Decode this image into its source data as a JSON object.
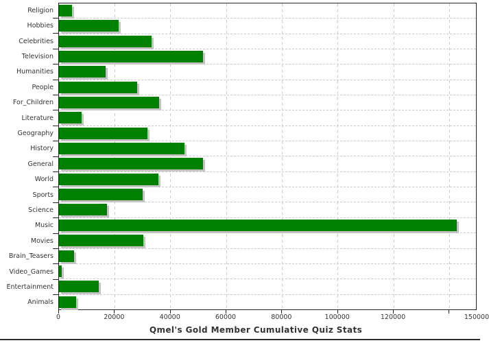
{
  "chart_data": {
    "type": "bar",
    "orientation": "horizontal",
    "title": "Qmel's Gold Member Cumulative Quiz Stats",
    "categories": [
      "Religion",
      "Hobbies",
      "Celebrities",
      "Television",
      "Humanities",
      "People",
      "For_Children",
      "Literature",
      "Geography",
      "History",
      "General",
      "World",
      "Sports",
      "Science",
      "Music",
      "Movies",
      "Brain_Teasers",
      "Video_Games",
      "Entertainment",
      "Animals"
    ],
    "values": [
      4700,
      21400,
      33200,
      51700,
      16700,
      28200,
      36100,
      8200,
      31900,
      45200,
      51700,
      35700,
      30000,
      17200,
      143200,
      30400,
      5500,
      1100,
      14400,
      6100
    ],
    "xlabel": "",
    "ylabel": "",
    "xlim": [
      0,
      150000
    ],
    "x_ticks": [
      {
        "value": 0,
        "label": "0"
      },
      {
        "value": 20000,
        "label": "20000"
      },
      {
        "value": 40000,
        "label": "40000"
      },
      {
        "value": 60000,
        "label": "60000"
      },
      {
        "value": 80000,
        "label": "80000"
      },
      {
        "value": 100000,
        "label": "100000"
      },
      {
        "value": 120000,
        "label": "120000"
      },
      {
        "value": 140000,
        "label": ""
      },
      {
        "value": 150000,
        "label": "150000"
      }
    ],
    "grid": "dashed",
    "legend": "none",
    "colors": {
      "bar": "#008000",
      "bar_shadow": "#c4c4c4",
      "grid": "#cccccc",
      "axis": "#222222",
      "text": "#333333"
    }
  }
}
